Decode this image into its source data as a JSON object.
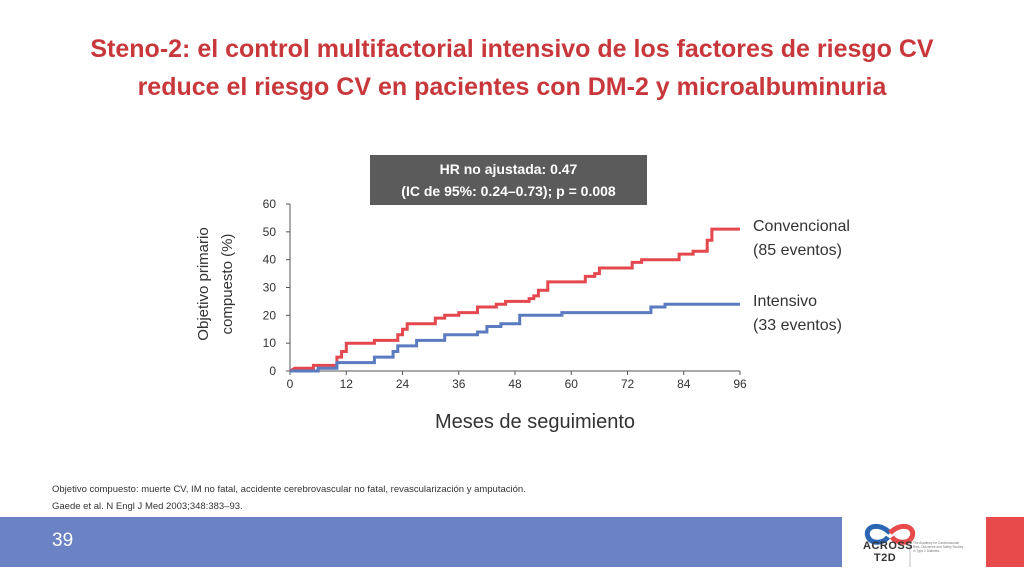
{
  "slide": {
    "title_line1": "Steno-2: el control multifactorial intensivo de los factores de riesgo CV",
    "title_line2": "reduce el riesgo CV en pacientes con DM-2 y microalbuminuria",
    "hr_line1": "HR no ajustada: 0.47",
    "hr_line2": "(IC de 95%: 0.24–0.73); p = 0.008",
    "note_line1": "Objetivo compuesto: muerte CV, IM no fatal, accidente cerebrovascular no fatal, revascularización y amputación.",
    "note_line2": "Gaede et al. N Engl J Med 2003;348:383–93.",
    "page_number": "39",
    "logo_line1": "ACROSS",
    "logo_line2": "T2D",
    "logo_tagline": "The Academy for Cardiovascular Risk, Outcomes and Safety Studies in Type 2 Diabetes",
    "colors": {
      "title": "#c8373b",
      "footer_bar": "#6b83c4",
      "accent_red": "#e8494a"
    }
  },
  "chart_data": {
    "type": "line",
    "step": true,
    "xlabel": "Meses de seguimiento",
    "ylabel_line1": "Objetivo primario",
    "ylabel_line2": "compuesto (%)",
    "xlim": [
      0,
      96
    ],
    "ylim": [
      0,
      60
    ],
    "xticks": [
      0,
      12,
      24,
      36,
      48,
      60,
      72,
      84,
      96
    ],
    "yticks": [
      0,
      10,
      20,
      30,
      40,
      50,
      60
    ],
    "grid": false,
    "series": [
      {
        "name": "Convencional",
        "label_line1": "Convencional",
        "label_line2": "(85 eventos)",
        "color": "#e4474e",
        "points": [
          [
            0,
            0
          ],
          [
            1,
            1
          ],
          [
            5,
            1
          ],
          [
            5,
            2
          ],
          [
            10,
            2
          ],
          [
            10,
            5
          ],
          [
            11,
            5
          ],
          [
            11,
            7
          ],
          [
            12,
            7
          ],
          [
            12,
            10
          ],
          [
            18,
            10
          ],
          [
            18,
            11
          ],
          [
            23,
            11
          ],
          [
            23,
            13
          ],
          [
            24,
            13
          ],
          [
            24,
            15
          ],
          [
            25,
            15
          ],
          [
            25,
            17
          ],
          [
            31,
            17
          ],
          [
            31,
            19
          ],
          [
            33,
            19
          ],
          [
            33,
            20
          ],
          [
            36,
            20
          ],
          [
            36,
            21
          ],
          [
            40,
            21
          ],
          [
            40,
            23
          ],
          [
            44,
            23
          ],
          [
            44,
            24
          ],
          [
            46,
            24
          ],
          [
            46,
            25
          ],
          [
            51,
            25
          ],
          [
            51,
            26
          ],
          [
            52,
            26
          ],
          [
            52,
            27
          ],
          [
            53,
            27
          ],
          [
            53,
            29
          ],
          [
            55,
            29
          ],
          [
            55,
            32
          ],
          [
            63,
            32
          ],
          [
            63,
            34
          ],
          [
            65,
            34
          ],
          [
            65,
            35
          ],
          [
            66,
            35
          ],
          [
            66,
            37
          ],
          [
            73,
            37
          ],
          [
            73,
            39
          ],
          [
            75,
            39
          ],
          [
            75,
            40
          ],
          [
            83,
            40
          ],
          [
            83,
            42
          ],
          [
            86,
            42
          ],
          [
            86,
            43
          ],
          [
            89,
            43
          ],
          [
            89,
            47
          ],
          [
            90,
            47
          ],
          [
            90,
            51
          ],
          [
            96,
            51
          ]
        ]
      },
      {
        "name": "Intensivo",
        "label_line1": "Intensivo",
        "label_line2": "(33 eventos)",
        "color": "#5b7bc1",
        "points": [
          [
            0,
            0
          ],
          [
            6,
            0
          ],
          [
            6,
            1
          ],
          [
            10,
            1
          ],
          [
            10,
            3
          ],
          [
            18,
            3
          ],
          [
            18,
            5
          ],
          [
            22,
            5
          ],
          [
            22,
            7
          ],
          [
            23,
            7
          ],
          [
            23,
            9
          ],
          [
            27,
            9
          ],
          [
            27,
            11
          ],
          [
            33,
            11
          ],
          [
            33,
            13
          ],
          [
            40,
            13
          ],
          [
            40,
            14
          ],
          [
            42,
            14
          ],
          [
            42,
            16
          ],
          [
            45,
            16
          ],
          [
            45,
            17
          ],
          [
            49,
            17
          ],
          [
            49,
            20
          ],
          [
            58,
            20
          ],
          [
            58,
            21
          ],
          [
            77,
            21
          ],
          [
            77,
            23
          ],
          [
            80,
            23
          ],
          [
            80,
            24
          ],
          [
            96,
            24
          ]
        ]
      }
    ]
  }
}
